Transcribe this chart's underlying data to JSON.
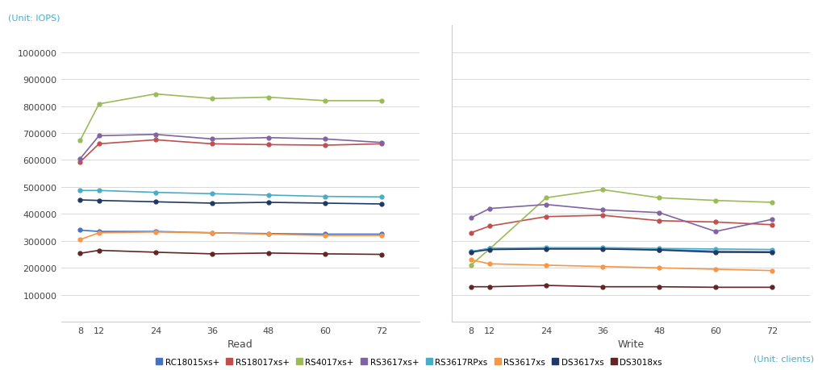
{
  "unit_iops": "(Unit: IOPS)",
  "unit_clients": "(Unit: clients)",
  "xlabel_left": "Read",
  "xlabel_right": "Write",
  "x_ticks": [
    8,
    12,
    24,
    36,
    48,
    60,
    72
  ],
  "ylim": [
    0,
    1100000
  ],
  "yticks": [
    100000,
    200000,
    300000,
    400000,
    500000,
    600000,
    700000,
    800000,
    900000,
    1000000
  ],
  "ytick_labels": [
    "100000",
    "200000",
    "300000",
    "400000",
    "500000",
    "600000",
    "700000",
    "800000",
    "900000",
    "1000000"
  ],
  "series": [
    {
      "name": "RC18015xs+",
      "color": "#4472c4",
      "read": [
        340000,
        335000,
        335000,
        330000,
        327000,
        325000,
        325000
      ],
      "write": [
        260000,
        272000,
        272000,
        272000,
        268000,
        262000,
        260000
      ]
    },
    {
      "name": "RS18017xs+",
      "color": "#c0504d",
      "read": [
        593000,
        660000,
        675000,
        660000,
        657000,
        655000,
        660000
      ],
      "write": [
        330000,
        355000,
        390000,
        395000,
        375000,
        370000,
        360000
      ]
    },
    {
      "name": "RS4017xs+",
      "color": "#9bbb59",
      "read": [
        673000,
        808000,
        845000,
        828000,
        833000,
        820000,
        820000
      ],
      "write": [
        210000,
        270000,
        460000,
        490000,
        460000,
        450000,
        443000
      ]
    },
    {
      "name": "RS3617xs+",
      "color": "#8064a2",
      "read": [
        605000,
        690000,
        695000,
        678000,
        683000,
        678000,
        665000
      ],
      "write": [
        385000,
        420000,
        435000,
        415000,
        405000,
        335000,
        380000
      ]
    },
    {
      "name": "RS3617RPxs",
      "color": "#4bacc6",
      "read": [
        487000,
        487000,
        480000,
        475000,
        470000,
        465000,
        463000
      ],
      "write": [
        260000,
        272000,
        275000,
        275000,
        272000,
        270000,
        268000
      ]
    },
    {
      "name": "RS3617xs",
      "color": "#f79646",
      "read": [
        305000,
        330000,
        333000,
        330000,
        325000,
        320000,
        320000
      ],
      "write": [
        230000,
        215000,
        210000,
        205000,
        200000,
        195000,
        190000
      ]
    },
    {
      "name": "DS3617xs",
      "color": "#1f3864",
      "read": [
        452000,
        450000,
        445000,
        440000,
        443000,
        440000,
        437000
      ],
      "write": [
        258000,
        268000,
        270000,
        270000,
        266000,
        258000,
        257000
      ]
    },
    {
      "name": "DS3018xs",
      "color": "#632523",
      "read": [
        254000,
        265000,
        258000,
        252000,
        255000,
        252000,
        250000
      ],
      "write": [
        130000,
        130000,
        135000,
        130000,
        130000,
        128000,
        128000
      ]
    }
  ]
}
